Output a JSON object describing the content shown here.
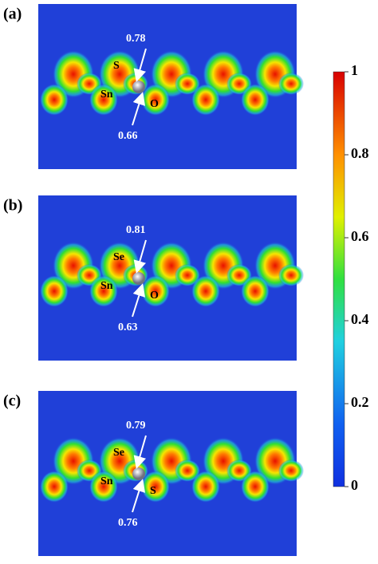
{
  "panels": [
    {
      "label": "(a)",
      "atoms": [
        "S",
        "Sn",
        "O"
      ],
      "values": [
        0.78,
        0.66
      ]
    },
    {
      "label": "(b)",
      "atoms": [
        "Se",
        "Sn",
        "O"
      ],
      "values": [
        0.81,
        0.63
      ]
    },
    {
      "label": "(c)",
      "atoms": [
        "Se",
        "Sn",
        "S"
      ],
      "values": [
        0.79,
        0.76
      ]
    }
  ],
  "colorbar": {
    "ticks": [
      1,
      0.8,
      0.6,
      0.4,
      0.2,
      0
    ]
  }
}
